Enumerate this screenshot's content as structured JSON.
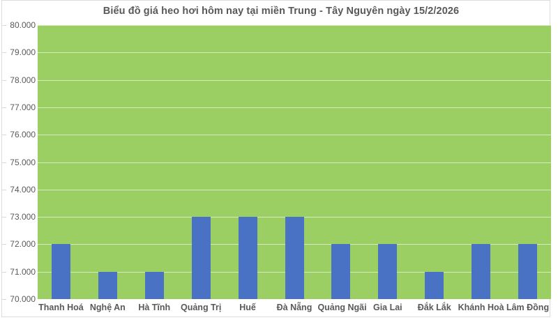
{
  "page": {
    "title": "Biểu đồ giá heo hơi hôm nay tại miền Trung - Tây Nguyên ngày 15/2/2026"
  },
  "chart_data": {
    "type": "bar",
    "title": "Biểu đồ giá heo hơi hôm nay tại miền Trung - Tây Nguyên ngày 15/2/2026",
    "categories": [
      "Thanh Hoá",
      "Nghệ An",
      "Hà Tĩnh",
      "Quảng Trị",
      "Huế",
      "Đà Nẵng",
      "Quảng Ngãi",
      "Gia Lai",
      "Đắk Lắk",
      "Khánh Hoà",
      "Lâm Đồng"
    ],
    "values": [
      72000,
      71000,
      71000,
      73000,
      73000,
      73000,
      72000,
      72000,
      71000,
      72000,
      72000
    ],
    "xlabel": "",
    "ylabel": "",
    "ylim": [
      70000,
      80000
    ],
    "y_step": 1000,
    "y_tick_labels": [
      "80.000",
      "79.000",
      "78.000",
      "77.000",
      "76.000",
      "75.000",
      "74.000",
      "73.000",
      "72.000",
      "71.000",
      "70.000"
    ],
    "grid": true,
    "legend": "none",
    "colors": {
      "bar": "#4a72c4",
      "plot_background": "#9bce63",
      "gridline": "#ffffff",
      "text": "#595959",
      "frame_border": "#dcdcdc",
      "tick": "#d9d9d9"
    }
  }
}
